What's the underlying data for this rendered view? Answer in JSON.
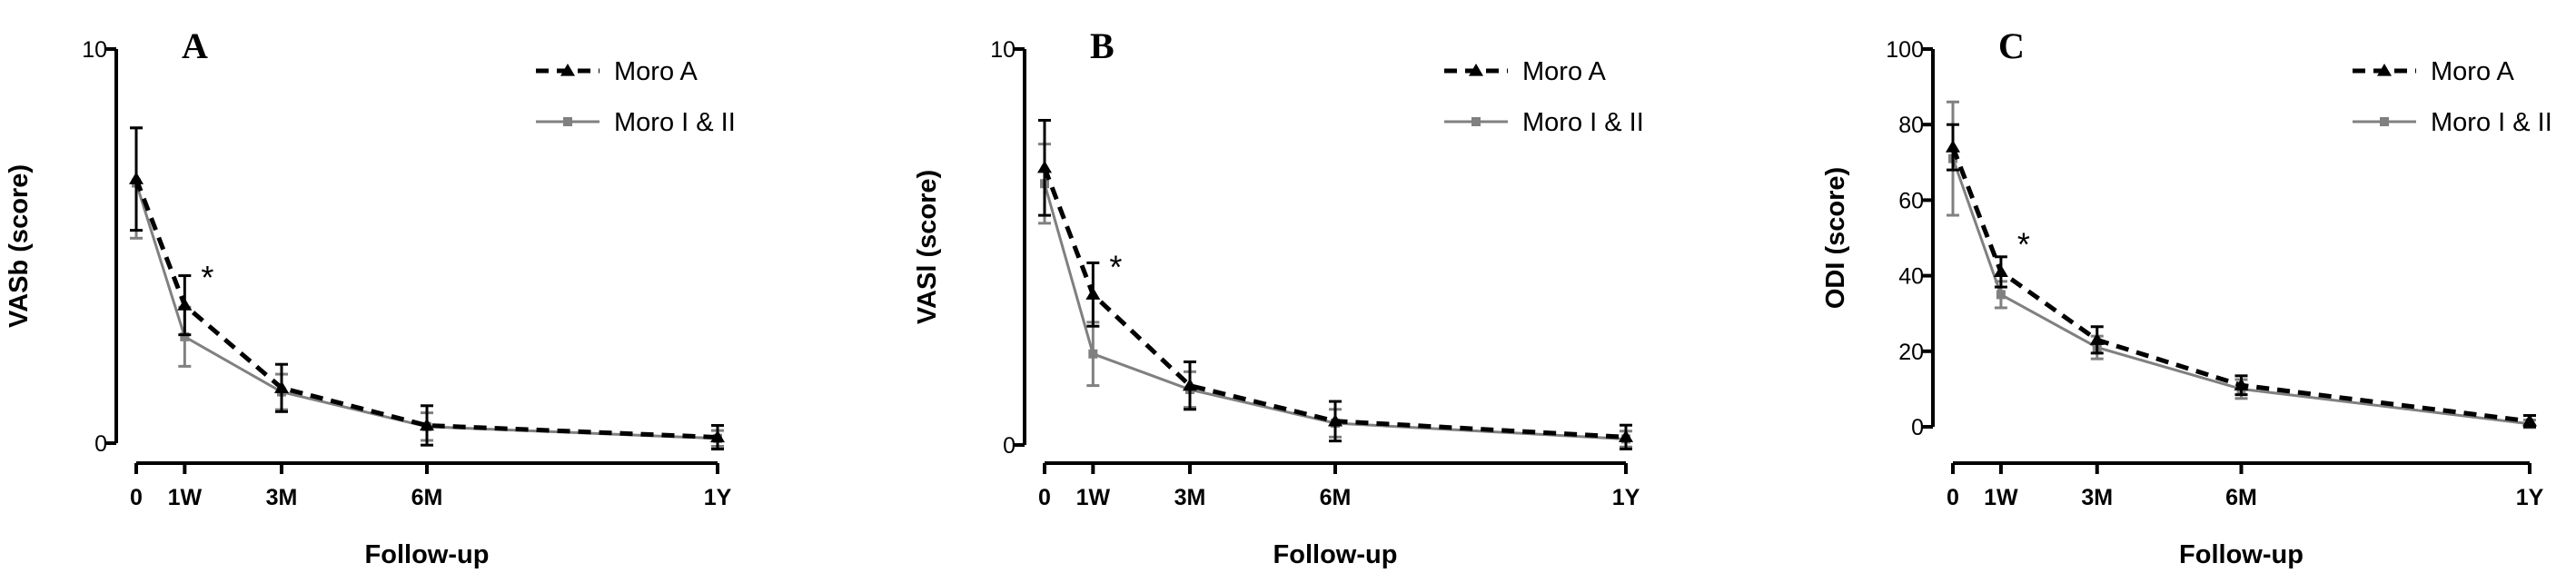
{
  "chart_data": [
    {
      "type": "line",
      "panel_label": "A",
      "xlabel": "Follow-up",
      "ylabel": "VASb (score)",
      "ylim": [
        0,
        10
      ],
      "yticks": [
        0,
        10
      ],
      "x": [
        0,
        1,
        3,
        6,
        12
      ],
      "x_tick_labels": [
        "0",
        "1W",
        "3M",
        "6M",
        "1Y"
      ],
      "legend_position": "top-right",
      "annotation": "*",
      "annotation_at": 1,
      "series": [
        {
          "name": "Moro A",
          "style": "dashed",
          "color": "#000000",
          "marker": "triangle",
          "values": [
            6.7,
            3.5,
            1.4,
            0.45,
            0.15
          ],
          "err": [
            1.3,
            0.75,
            0.6,
            0.5,
            0.3
          ]
        },
        {
          "name": "Moro I & II",
          "style": "solid",
          "color": "#808080",
          "marker": "square",
          "values": [
            6.6,
            2.7,
            1.3,
            0.42,
            0.12
          ],
          "err": [
            1.4,
            0.75,
            0.45,
            0.35,
            0.2
          ]
        }
      ]
    },
    {
      "type": "line",
      "panel_label": "B",
      "xlabel": "Follow-up",
      "ylabel": "VASl (score)",
      "ylim": [
        0,
        10
      ],
      "yticks": [
        0,
        10
      ],
      "x": [
        0,
        1,
        3,
        6,
        12
      ],
      "x_tick_labels": [
        "0",
        "1W",
        "3M",
        "6M",
        "1Y"
      ],
      "legend_position": "top-right",
      "annotation": "*",
      "annotation_at": 1,
      "series": [
        {
          "name": "Moro A",
          "style": "dashed",
          "color": "#000000",
          "marker": "triangle",
          "values": [
            7.0,
            3.8,
            1.5,
            0.6,
            0.2
          ],
          "err": [
            1.2,
            0.8,
            0.6,
            0.5,
            0.3
          ]
        },
        {
          "name": "Moro I & II",
          "style": "solid",
          "color": "#808080",
          "marker": "square",
          "values": [
            6.6,
            2.3,
            1.4,
            0.55,
            0.15
          ],
          "err": [
            1.0,
            0.8,
            0.45,
            0.35,
            0.2
          ]
        }
      ]
    },
    {
      "type": "line",
      "panel_label": "C",
      "xlabel": "Follow-up",
      "ylabel": "ODI (score)",
      "ylim": [
        0,
        100
      ],
      "yticks": [
        0,
        20,
        40,
        60,
        80,
        100
      ],
      "x": [
        0,
        1,
        3,
        6,
        12
      ],
      "x_tick_labels": [
        "0",
        "1W",
        "3M",
        "6M",
        "1Y"
      ],
      "legend_position": "top-right",
      "annotation": "*",
      "annotation_at": 1,
      "series": [
        {
          "name": "Moro A",
          "style": "dashed",
          "color": "#000000",
          "marker": "triangle",
          "values": [
            74,
            41,
            23,
            11,
            1.5
          ],
          "err": [
            6,
            4,
            3.5,
            2.5,
            1.5
          ]
        },
        {
          "name": "Moro I & II",
          "style": "solid",
          "color": "#808080",
          "marker": "square",
          "values": [
            71,
            35,
            21,
            10,
            0.8
          ],
          "err": [
            15,
            3.5,
            3,
            2.5,
            1.0
          ]
        }
      ]
    }
  ]
}
